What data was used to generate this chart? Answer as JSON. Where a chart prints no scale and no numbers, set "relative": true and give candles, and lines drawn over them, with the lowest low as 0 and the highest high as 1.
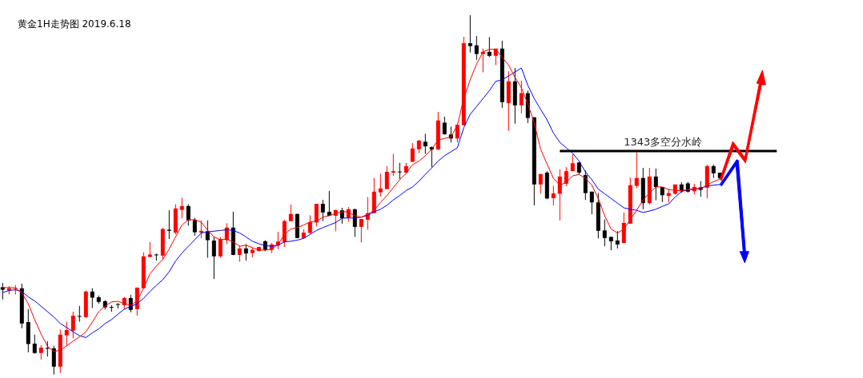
{
  "chart_data": {
    "type": "candlestick",
    "title": "黄金1H走势图  2019.6.18",
    "relative": true,
    "categories": [
      null,
      null,
      null,
      null,
      null,
      null,
      null,
      null,
      null,
      null,
      null,
      null,
      null,
      null,
      null,
      null,
      null,
      null,
      null,
      null,
      null,
      null,
      null,
      null,
      null,
      null,
      null,
      null,
      null,
      null,
      null,
      null,
      null,
      null,
      null,
      null,
      null,
      null,
      null,
      null,
      null,
      null,
      null,
      null,
      null,
      null,
      null,
      null,
      null,
      null,
      null,
      null,
      null,
      null,
      null,
      null,
      null,
      null,
      null,
      null,
      null,
      null,
      null,
      null,
      null,
      null,
      null,
      null,
      null,
      null,
      null,
      null,
      null,
      null,
      null,
      null,
      null,
      null,
      null,
      null,
      null,
      null,
      null,
      null,
      null,
      null,
      null,
      null,
      null,
      null,
      null,
      null,
      null,
      null,
      null,
      null,
      null,
      null,
      null,
      null,
      null,
      null,
      null,
      null,
      null,
      null,
      null,
      null,
      null,
      null,
      null,
      null,
      null
    ],
    "ohlc": [
      [
        0.243,
        0.255,
        0.209,
        0.236
      ],
      [
        0.234,
        0.246,
        0.223,
        0.24
      ],
      [
        0.239,
        0.249,
        0.223,
        0.241
      ],
      [
        0.24,
        0.253,
        0.129,
        0.142
      ],
      [
        0.146,
        0.182,
        0.062,
        0.085
      ],
      [
        0.086,
        0.111,
        0.058,
        0.06
      ],
      [
        0.06,
        0.082,
        0.042,
        0.075
      ],
      [
        0.074,
        0.093,
        0.05,
        0.073
      ],
      [
        0.073,
        0.08,
        0,
        0.022
      ],
      [
        0.022,
        0.125,
        0.004,
        0.111
      ],
      [
        0.109,
        0.147,
        0.079,
        0.124
      ],
      [
        0.122,
        0.175,
        0.101,
        0.164
      ],
      [
        0.163,
        0.191,
        0.147,
        0.161
      ],
      [
        0.16,
        0.234,
        0.157,
        0.231
      ],
      [
        0.231,
        0.24,
        0.185,
        0.214
      ],
      [
        0.215,
        0.22,
        0.197,
        0.202
      ],
      [
        0.204,
        0.207,
        0.181,
        0.187
      ],
      [
        0.188,
        0.193,
        0.175,
        0.186
      ],
      [
        0.196,
        0.199,
        0.184,
        0.194
      ],
      [
        0.193,
        0.216,
        0.182,
        0.213
      ],
      [
        0.213,
        0.222,
        0.173,
        0.18
      ],
      [
        0.182,
        0.242,
        0.164,
        0.242
      ],
      [
        0.24,
        0.34,
        0.24,
        0.329
      ],
      [
        0.327,
        0.369,
        0.327,
        0.334
      ],
      [
        0.334,
        0.337,
        0.317,
        0.332
      ],
      [
        0.331,
        0.409,
        0.32,
        0.405
      ],
      [
        0.403,
        0.457,
        0.377,
        0.4
      ],
      [
        0.395,
        0.474,
        0.39,
        0.462
      ],
      [
        0.458,
        0.492,
        0.435,
        0.469
      ],
      [
        0.469,
        0.474,
        0.414,
        0.429
      ],
      [
        0.43,
        0.436,
        0.386,
        0.396
      ],
      [
        0.395,
        0.429,
        0.38,
        0.4
      ],
      [
        0.399,
        0.429,
        0.325,
        0.374
      ],
      [
        0.373,
        0.384,
        0.266,
        0.329
      ],
      [
        0.329,
        0.383,
        0.325,
        0.377
      ],
      [
        0.374,
        0.421,
        0.363,
        0.409
      ],
      [
        0.409,
        0.453,
        0.332,
        0.333
      ],
      [
        0.333,
        0.359,
        0.314,
        0.351
      ],
      [
        0.351,
        0.363,
        0.317,
        0.337
      ],
      [
        0.338,
        0.353,
        0.326,
        0.347
      ],
      [
        0.344,
        0.355,
        0.342,
        0.355
      ],
      [
        0.371,
        0.374,
        0.343,
        0.347
      ],
      [
        0.347,
        0.366,
        0.338,
        0.362
      ],
      [
        0.359,
        0.397,
        0.349,
        0.37
      ],
      [
        0.369,
        0.431,
        0.355,
        0.427
      ],
      [
        0.427,
        0.473,
        0.427,
        0.447
      ],
      [
        0.447,
        0.447,
        0.379,
        0.38
      ],
      [
        0.38,
        0.405,
        0.379,
        0.395
      ],
      [
        0.394,
        0.443,
        0.392,
        0.424
      ],
      [
        0.423,
        0.475,
        0.412,
        0.475
      ],
      [
        0.475,
        0.486,
        0.427,
        0.451
      ],
      [
        0.453,
        0.511,
        0.442,
        0.442
      ],
      [
        0.442,
        0.458,
        0.399,
        0.458
      ],
      [
        0.457,
        0.464,
        0.42,
        0.435
      ],
      [
        0.436,
        0.466,
        0.425,
        0.46
      ],
      [
        0.46,
        0.462,
        0.383,
        0.411
      ],
      [
        0.411,
        0.433,
        0.368,
        0.433
      ],
      [
        0.431,
        0.494,
        0.403,
        0.449
      ],
      [
        0.449,
        0.547,
        0.449,
        0.509
      ],
      [
        0.507,
        0.559,
        0.495,
        0.518
      ],
      [
        0.516,
        0.58,
        0.516,
        0.564
      ],
      [
        0.562,
        0.614,
        0.553,
        0.566
      ],
      [
        0.565,
        0.589,
        0.544,
        0.564
      ],
      [
        0.562,
        0.589,
        0.559,
        0.58
      ],
      [
        0.592,
        0.644,
        0.592,
        0.629
      ],
      [
        0.627,
        0.653,
        0.616,
        0.651
      ],
      [
        0.648,
        0.67,
        0.614,
        0.635
      ],
      [
        0.633,
        0.635,
        0.577,
        0.626
      ],
      [
        0.626,
        0.731,
        0.626,
        0.707
      ],
      [
        0.701,
        0.718,
        0.667,
        0.669
      ],
      [
        0.668,
        0.69,
        0.646,
        0.657
      ],
      [
        0.657,
        0.695,
        0.646,
        0.695
      ],
      [
        0.694,
        0.94,
        0.694,
        0.922
      ],
      [
        0.922,
        1,
        0.896,
        0.914
      ],
      [
        0.916,
        0.942,
        0.876,
        0.892
      ],
      [
        0.892,
        0.907,
        0.841,
        0.898
      ],
      [
        0.898,
        0.939,
        0.883,
        0.887
      ],
      [
        0.887,
        0.907,
        0.861,
        0.907
      ],
      [
        0.907,
        0.929,
        0.742,
        0.758
      ],
      [
        0.755,
        0.844,
        0.678,
        0.816
      ],
      [
        0.816,
        0.853,
        0.698,
        0.749
      ],
      [
        0.749,
        0.818,
        0.727,
        0.783
      ],
      [
        0.783,
        0.79,
        0.7,
        0.714
      ],
      [
        0.716,
        0.716,
        0.471,
        0.529
      ],
      [
        0.529,
        0.558,
        0.503,
        0.558
      ],
      [
        0.562,
        0.566,
        0.488,
        0.49
      ],
      [
        0.491,
        0.525,
        0.471,
        0.504
      ],
      [
        0.503,
        0.571,
        0.429,
        0.551
      ],
      [
        0.531,
        0.577,
        0.524,
        0.566
      ],
      [
        0.566,
        0.613,
        0.566,
        0.588
      ],
      [
        0.59,
        0.592,
        0.557,
        0.562
      ],
      [
        0.555,
        0.568,
        0.486,
        0.505
      ],
      [
        0.509,
        0.509,
        0.446,
        0.479
      ],
      [
        0.479,
        0.505,
        0.379,
        0.4
      ],
      [
        0.401,
        0.432,
        0.357,
        0.38
      ],
      [
        0.383,
        0.384,
        0.346,
        0.371
      ],
      [
        0.373,
        0.399,
        0.351,
        0.362
      ],
      [
        0.366,
        0.451,
        0.366,
        0.422
      ],
      [
        0.42,
        0.548,
        0.42,
        0.527
      ],
      [
        0.525,
        0.618,
        0.518,
        0.547
      ],
      [
        0.547,
        0.575,
        0.46,
        0.477
      ],
      [
        0.477,
        0.575,
        0.473,
        0.551
      ],
      [
        0.551,
        0.573,
        0.485,
        0.522
      ],
      [
        0.522,
        0.522,
        0.48,
        0.499
      ],
      [
        0.497,
        0.516,
        0.479,
        0.505
      ],
      [
        0.503,
        0.529,
        0.501,
        0.529
      ],
      [
        0.529,
        0.535,
        0.506,
        0.51
      ],
      [
        0.532,
        0.536,
        0.506,
        0.509
      ],
      [
        0.51,
        0.531,
        0.501,
        0.522
      ],
      [
        0.521,
        0.538,
        0.495,
        0.514
      ],
      [
        0.52,
        0.584,
        0.49,
        0.58
      ],
      [
        0.58,
        0.584,
        0.547,
        0.56
      ],
      [
        0.562,
        0.562,
        0.546,
        0.546
      ]
    ],
    "colors": [
      "#000000",
      "#ff0000",
      "#ff0000",
      "#000000",
      "#000000",
      "#000000",
      "#ff0000",
      "#000000",
      "#000000",
      "#ff0000",
      "#ff0000",
      "#ff0000",
      "#000000",
      "#ff0000",
      "#000000",
      "#000000",
      "#000000",
      "#000000",
      "#000000",
      "#ff0000",
      "#000000",
      "#ff0000",
      "#ff0000",
      "#ff0000",
      "#000000",
      "#ff0000",
      "#000000",
      "#ff0000",
      "#ff0000",
      "#000000",
      "#000000",
      "#ff0000",
      "#000000",
      "#000000",
      "#ff0000",
      "#ff0000",
      "#000000",
      "#ff0000",
      "#000000",
      "#ff0000",
      "#ff0000",
      "#000000",
      "#ff0000",
      "#ff0000",
      "#ff0000",
      "#ff0000",
      "#000000",
      "#ff0000",
      "#ff0000",
      "#ff0000",
      "#000000",
      "#000000",
      "#ff0000",
      "#000000",
      "#ff0000",
      "#000000",
      "#ff0000",
      "#ff0000",
      "#ff0000",
      "#ff0000",
      "#ff0000",
      "#ff0000",
      "#000000",
      "#ff0000",
      "#ff0000",
      "#ff0000",
      "#000000",
      "#000000",
      "#ff0000",
      "#000000",
      "#000000",
      "#ff0000",
      "#ff0000",
      "#000000",
      "#000000",
      "#ff0000",
      "#000000",
      "#ff0000",
      "#000000",
      "#ff0000",
      "#000000",
      "#ff0000",
      "#000000",
      "#000000",
      "#ff0000",
      "#000000",
      "#ff0000",
      "#ff0000",
      "#ff0000",
      "#ff0000",
      "#000000",
      "#000000",
      "#000000",
      "#000000",
      "#000000",
      "#000000",
      "#000000",
      "#ff0000",
      "#ff0000",
      "#ff0000",
      "#000000",
      "#ff0000",
      "#000000",
      "#000000",
      "#ff0000",
      "#ff0000",
      "#000000",
      "#000000",
      "#ff0000",
      "#000000",
      "#ff0000",
      "#000000",
      "#000000"
    ],
    "series": [
      {
        "type": "line",
        "color": "#ff0000",
        "values": [
          0.242,
          0.242,
          0.241,
          0.227,
          0.197,
          0.153,
          0.113,
          0.079,
          0.064,
          0.068,
          0.08,
          0.093,
          0.105,
          0.119,
          0.146,
          0.175,
          0.191,
          0.202,
          0.204,
          0.197,
          0.193,
          0.205,
          0.24,
          0.28,
          0.302,
          0.32,
          0.349,
          0.383,
          0.416,
          0.431,
          0.431,
          0.424,
          0.402,
          0.383,
          0.375,
          0.377,
          0.369,
          0.357,
          0.36,
          0.353,
          0.347,
          0.346,
          0.349,
          0.362,
          0.39,
          0.405,
          0.409,
          0.416,
          0.425,
          0.427,
          0.438,
          0.442,
          0.449,
          0.453,
          0.453,
          0.442,
          0.438,
          0.446,
          0.457,
          0.479,
          0.498,
          0.52,
          0.542,
          0.56,
          0.584,
          0.594,
          0.609,
          0.627,
          0.653,
          0.657,
          0.661,
          0.694,
          0.768,
          0.82,
          0.864,
          0.898,
          0.905,
          0.905,
          0.883,
          0.861,
          0.827,
          0.798,
          0.753,
          0.701,
          0.627,
          0.586,
          0.546,
          0.527,
          0.535,
          0.553,
          0.557,
          0.546,
          0.527,
          0.49,
          0.442,
          0.405,
          0.394,
          0.405,
          0.431,
          0.457,
          0.486,
          0.505,
          0.522,
          0.522,
          0.515,
          0.512,
          0.512,
          0.515,
          0.516,
          0.518,
          0.527,
          0.537,
          0.544
        ]
      },
      {
        "type": "line",
        "color": "#0000ff",
        "values": [
          0.228,
          0.234,
          0.236,
          0.231,
          0.216,
          0.205,
          0.19,
          0.175,
          0.16,
          0.142,
          0.131,
          0.119,
          0.108,
          0.103,
          0.116,
          0.127,
          0.142,
          0.153,
          0.168,
          0.182,
          0.19,
          0.197,
          0.212,
          0.231,
          0.248,
          0.264,
          0.286,
          0.316,
          0.338,
          0.357,
          0.375,
          0.394,
          0.397,
          0.399,
          0.401,
          0.403,
          0.401,
          0.394,
          0.383,
          0.371,
          0.364,
          0.359,
          0.357,
          0.36,
          0.369,
          0.371,
          0.374,
          0.379,
          0.39,
          0.401,
          0.409,
          0.416,
          0.423,
          0.435,
          0.436,
          0.435,
          0.438,
          0.443,
          0.453,
          0.46,
          0.471,
          0.486,
          0.498,
          0.512,
          0.522,
          0.538,
          0.557,
          0.575,
          0.594,
          0.609,
          0.62,
          0.631,
          0.687,
          0.724,
          0.746,
          0.768,
          0.79,
          0.816,
          0.82,
          0.831,
          0.842,
          0.853,
          0.805,
          0.768,
          0.738,
          0.709,
          0.672,
          0.646,
          0.631,
          0.616,
          0.594,
          0.564,
          0.542,
          0.516,
          0.503,
          0.49,
          0.477,
          0.464,
          0.46,
          0.457,
          0.451,
          0.455,
          0.46,
          0.468,
          0.475,
          0.494,
          0.509,
          0.515,
          0.516,
          0.518,
          0.525,
          0.527,
          0.529
        ]
      }
    ],
    "ref_lines": [
      {
        "axis": "y",
        "value": 0.622,
        "label": "1343多空分水岭",
        "color": "#000000"
      }
    ]
  }
}
